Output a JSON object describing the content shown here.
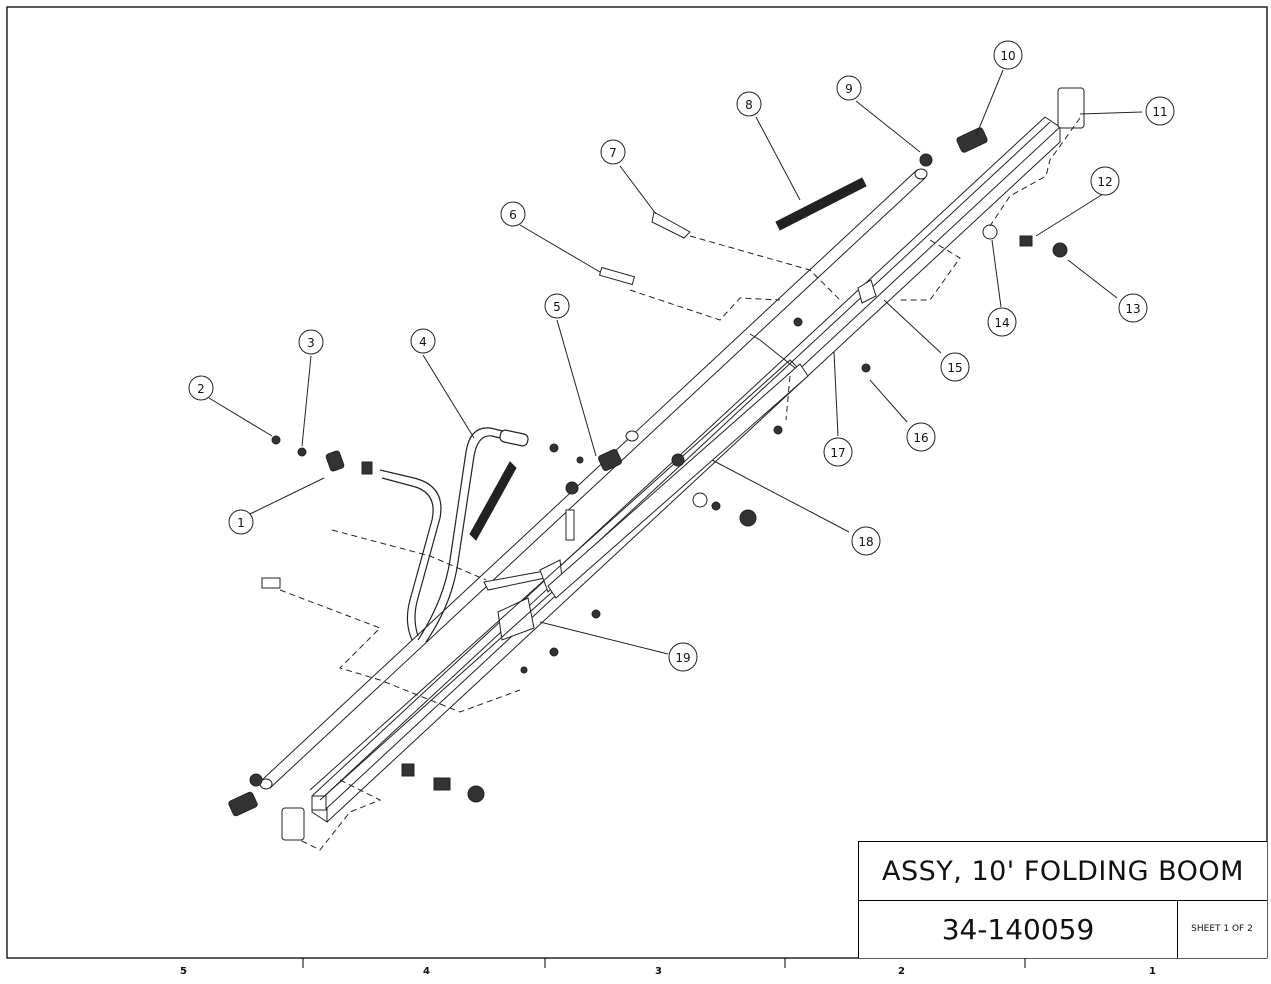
{
  "title_block": {
    "title": "ASSY, 10' FOLDING BOOM",
    "drawing_number": "34-140059",
    "sheet": "SHEET 1 OF 2"
  },
  "zones": [
    "5",
    "4",
    "3",
    "2",
    "1"
  ],
  "balloons": [
    "1",
    "2",
    "3",
    "4",
    "5",
    "6",
    "7",
    "8",
    "9",
    "10",
    "11",
    "12",
    "13",
    "14",
    "15",
    "16",
    "17",
    "18",
    "19"
  ]
}
